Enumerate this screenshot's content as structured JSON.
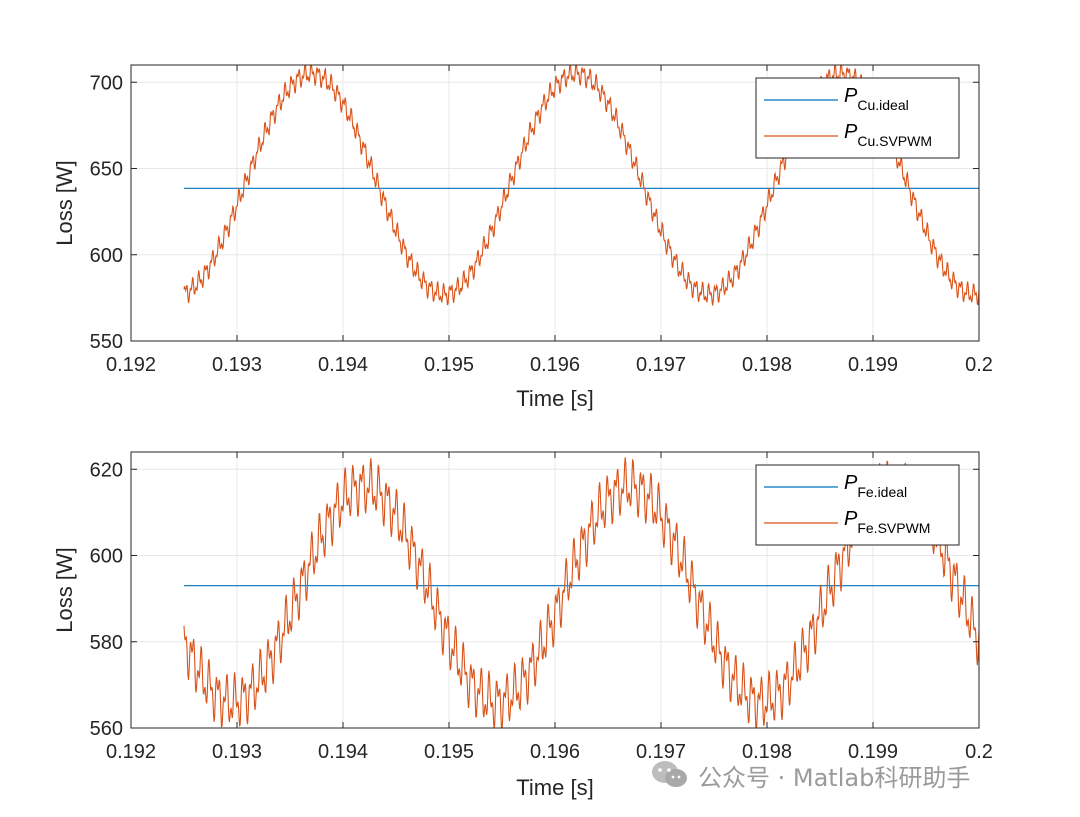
{
  "colors": {
    "ideal": "#0072BD",
    "svpwm": "#D95319",
    "axis": "#262626",
    "grid": "#e8e8e8"
  },
  "watermark": {
    "text": "公众号 · Matlab科研助手",
    "icon": "wechat-icon"
  },
  "chart_data": [
    {
      "type": "line",
      "title": "",
      "xlabel": "Time [s]",
      "ylabel": "Loss [W]",
      "xlim": [
        0.192,
        0.2
      ],
      "ylim": [
        550,
        710
      ],
      "xticks": [
        0.192,
        0.193,
        0.194,
        0.195,
        0.196,
        0.197,
        0.198,
        0.199,
        0.2
      ],
      "xtick_labels": [
        "0.192",
        "0.193",
        "0.194",
        "0.195",
        "0.196",
        "0.197",
        "0.198",
        "0.199",
        "0.2"
      ],
      "yticks": [
        550,
        600,
        650,
        700
      ],
      "ytick_labels": [
        "550",
        "600",
        "650",
        "700"
      ],
      "grid": true,
      "legend_location": "top-right",
      "x_start": 0.1925,
      "x_end": 0.2,
      "series": [
        {
          "name": "P_Cu.ideal",
          "legend_main": "P",
          "legend_sub": "Cu.ideal",
          "color_key": "ideal",
          "kind": "constant",
          "value": 638.5
        },
        {
          "name": "P_Cu.SVPWM",
          "legend_main": "P",
          "legend_sub": "Cu.SVPWM",
          "color_key": "svpwm",
          "kind": "sinusoid",
          "mean": 641,
          "amplitude": 64,
          "period": 0.0025,
          "peak_time": 0.1937,
          "ripple": 7,
          "ripple_period": 6.25e-05
        }
      ]
    },
    {
      "type": "line",
      "title": "",
      "xlabel": "Time [s]",
      "ylabel": "Loss [W]",
      "xlim": [
        0.192,
        0.2
      ],
      "ylim": [
        560,
        624
      ],
      "xticks": [
        0.192,
        0.193,
        0.194,
        0.195,
        0.196,
        0.197,
        0.198,
        0.199,
        0.2
      ],
      "xtick_labels": [
        "0.192",
        "0.193",
        "0.194",
        "0.195",
        "0.196",
        "0.197",
        "0.198",
        "0.199",
        "0.2"
      ],
      "yticks": [
        560,
        580,
        600,
        620
      ],
      "ytick_labels": [
        "560",
        "580",
        "600",
        "620"
      ],
      "grid": true,
      "legend_location": "top-right",
      "x_start": 0.1925,
      "x_end": 0.2,
      "series": [
        {
          "name": "P_Fe.ideal",
          "legend_main": "P",
          "legend_sub": "Fe.ideal",
          "color_key": "ideal",
          "kind": "constant",
          "value": 593
        },
        {
          "name": "P_Fe.SVPWM",
          "legend_main": "P",
          "legend_sub": "Fe.SVPWM",
          "color_key": "svpwm",
          "kind": "sinusoid",
          "mean": 591,
          "amplitude": 25,
          "period": 0.0025,
          "peak_time": 0.1942,
          "ripple": 7,
          "ripple_period": 8e-05
        }
      ]
    }
  ]
}
